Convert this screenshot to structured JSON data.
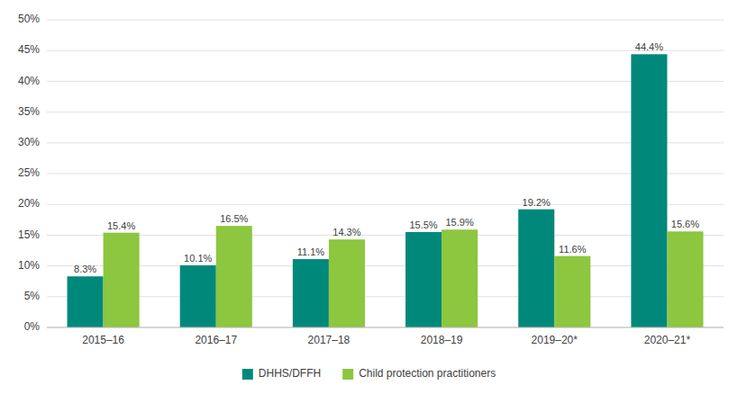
{
  "chart_data": {
    "type": "bar",
    "categories": [
      "2015–16",
      "2016–17",
      "2017–18",
      "2018–19",
      "2019–20*",
      "2020–21*"
    ],
    "series": [
      {
        "name": "DHHS/DFFH",
        "color": "#00897B",
        "values": [
          8.3,
          10.1,
          11.1,
          15.5,
          19.2,
          44.4
        ],
        "value_labels": [
          "8.3%",
          "10.1%",
          "11.1%",
          "15.5%",
          "19.2%",
          "44.4%"
        ]
      },
      {
        "name": "Child protection practitioners",
        "color": "#8DC63F",
        "values": [
          15.4,
          16.5,
          14.3,
          15.9,
          11.6,
          15.6
        ],
        "value_labels": [
          "15.4%",
          "16.5%",
          "14.3%",
          "15.9%",
          "11.6%",
          "15.6%"
        ]
      }
    ],
    "ylim": [
      0,
      50
    ],
    "yticks": [
      {
        "value": 0,
        "label": "0%"
      },
      {
        "value": 5,
        "label": "5%"
      },
      {
        "value": 10,
        "label": "10%"
      },
      {
        "value": 15,
        "label": "15%"
      },
      {
        "value": 20,
        "label": "20%"
      },
      {
        "value": 25,
        "label": "25%"
      },
      {
        "value": 30,
        "label": "30%"
      },
      {
        "value": 35,
        "label": "35%"
      },
      {
        "value": 40,
        "label": "40%"
      },
      {
        "value": 45,
        "label": "45%"
      },
      {
        "value": 50,
        "label": "50%"
      }
    ],
    "grid": true,
    "data_labels": true,
    "legend": "bottom"
  }
}
